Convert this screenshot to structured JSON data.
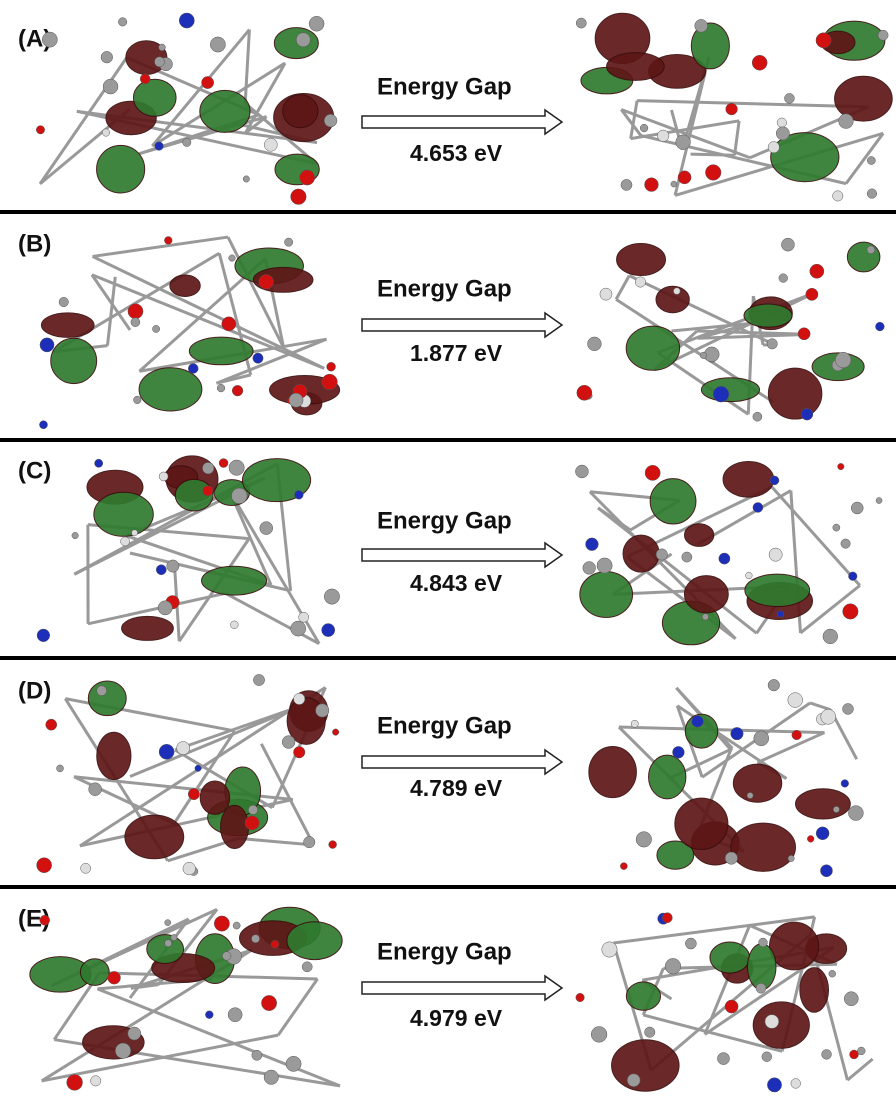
{
  "panels": [
    {
      "label": "(A)",
      "heading": "Energy Gap",
      "gap": "4.653 eV"
    },
    {
      "label": "(B)",
      "heading": "Energy Gap",
      "gap": "1.877 eV"
    },
    {
      "label": "(C)",
      "heading": "Energy Gap",
      "gap": "4.843 eV"
    },
    {
      "label": "(D)",
      "heading": "Energy Gap",
      "gap": "4.789 eV"
    },
    {
      "label": "(E)",
      "heading": "Energy Gap",
      "gap": "4.979 eV"
    }
  ]
}
